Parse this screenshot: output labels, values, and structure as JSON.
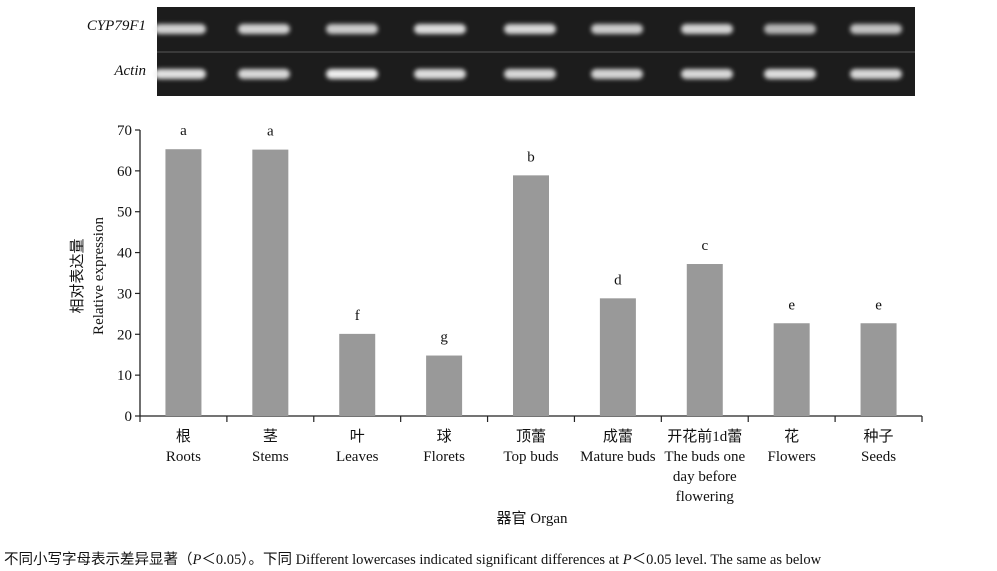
{
  "gel": {
    "rows": [
      {
        "label": "CYP79F1",
        "intensities": [
          0.85,
          0.85,
          0.82,
          0.9,
          0.88,
          0.82,
          0.86,
          0.72,
          0.78
        ]
      },
      {
        "label": "Actin",
        "intensities": [
          0.92,
          0.88,
          0.98,
          0.9,
          0.88,
          0.86,
          0.88,
          0.9,
          0.88
        ]
      }
    ],
    "colors": {
      "background": "#1c1c1c",
      "band": "#f2f2f2"
    }
  },
  "chart_data": {
    "type": "bar",
    "title": "",
    "categories": [
      {
        "zh": "根",
        "en": [
          "Roots"
        ]
      },
      {
        "zh": "茎",
        "en": [
          "Stems"
        ]
      },
      {
        "zh": "叶",
        "en": [
          "Leaves"
        ]
      },
      {
        "zh": "球",
        "en": [
          "Florets"
        ]
      },
      {
        "zh": "顶蕾",
        "en": [
          "Top buds"
        ]
      },
      {
        "zh": "成蕾",
        "en": [
          "Mature buds"
        ]
      },
      {
        "zh": "开花前1d蕾",
        "en": [
          "The buds one",
          "day before",
          "flowering"
        ]
      },
      {
        "zh": "花",
        "en": [
          "Flowers"
        ]
      },
      {
        "zh": "种子",
        "en": [
          "Seeds"
        ]
      }
    ],
    "values": [
      65.3,
      65.2,
      20.1,
      14.8,
      58.9,
      28.8,
      37.2,
      22.7,
      22.7
    ],
    "significance": [
      "a",
      "a",
      "f",
      "g",
      "b",
      "d",
      "c",
      "e",
      "e"
    ],
    "ylabel_zh": "相对表达量",
    "ylabel_en": "Relative expression",
    "xlabel": "器官 Organ",
    "ylim": [
      0,
      70
    ],
    "yticks": [
      0,
      10,
      20,
      30,
      40,
      50,
      60,
      70
    ],
    "grid": false,
    "legend": "none",
    "colors": {
      "bar": "#999999",
      "axis": "#222222"
    }
  },
  "caption": {
    "text_zh": "不同小写字母表示差异显著（",
    "p_symbol": "P",
    "text_mid": "＜0.05）。下同  Different lowercases indicated significant differences at ",
    "p_symbol_2": "P",
    "text_end": "＜0.05 level. The same as below"
  }
}
